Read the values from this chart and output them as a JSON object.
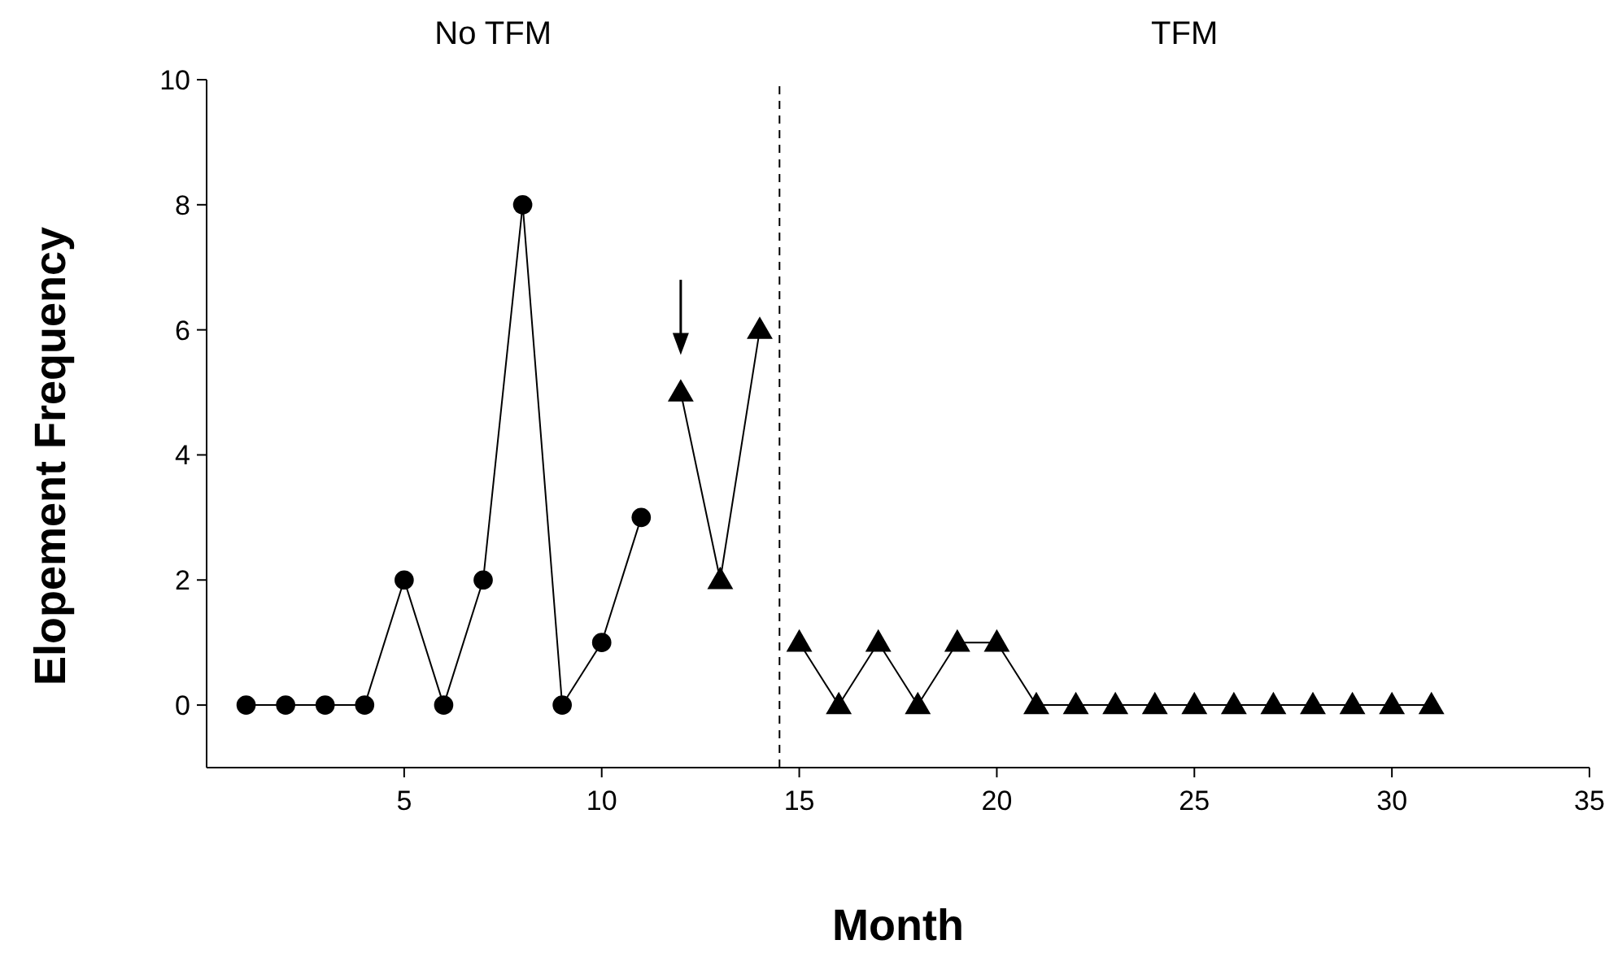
{
  "chart_data": {
    "type": "line",
    "xlabel": "Month",
    "ylabel": "Elopement Frequency",
    "xlim": [
      0,
      35
    ],
    "xticks": [
      5,
      10,
      15,
      20,
      25,
      30,
      35
    ],
    "ylim": [
      -1,
      10
    ],
    "yticks": [
      0,
      2,
      4,
      6,
      8,
      10
    ],
    "grid": false,
    "line_style": "solid",
    "series": [
      {
        "color": "#000000",
        "marker": "circle",
        "x": [
          1,
          2,
          3,
          4,
          5,
          6,
          7,
          8,
          9,
          10,
          11
        ],
        "values": [
          0,
          0,
          0,
          0,
          2,
          0,
          2,
          8,
          0,
          1,
          3
        ]
      },
      {
        "color": "#000000",
        "marker": "triangle",
        "x": [
          12,
          13,
          14
        ],
        "values": [
          5,
          2,
          6
        ]
      },
      {
        "color": "#000000",
        "marker": "triangle",
        "x": [
          15,
          16,
          17,
          18,
          19,
          20,
          21,
          22,
          23,
          24,
          25,
          26,
          27,
          28,
          29,
          30,
          31
        ],
        "values": [
          1,
          0,
          1,
          0,
          1,
          1,
          0,
          0,
          0,
          0,
          0,
          0,
          0,
          0,
          0,
          0,
          0
        ]
      }
    ],
    "ref_lines": [
      {
        "axis": "x",
        "value": 14.5,
        "line_style": "dashed",
        "color": "#000000"
      }
    ],
    "annotations": [
      "No TFM",
      "TFM"
    ]
  }
}
